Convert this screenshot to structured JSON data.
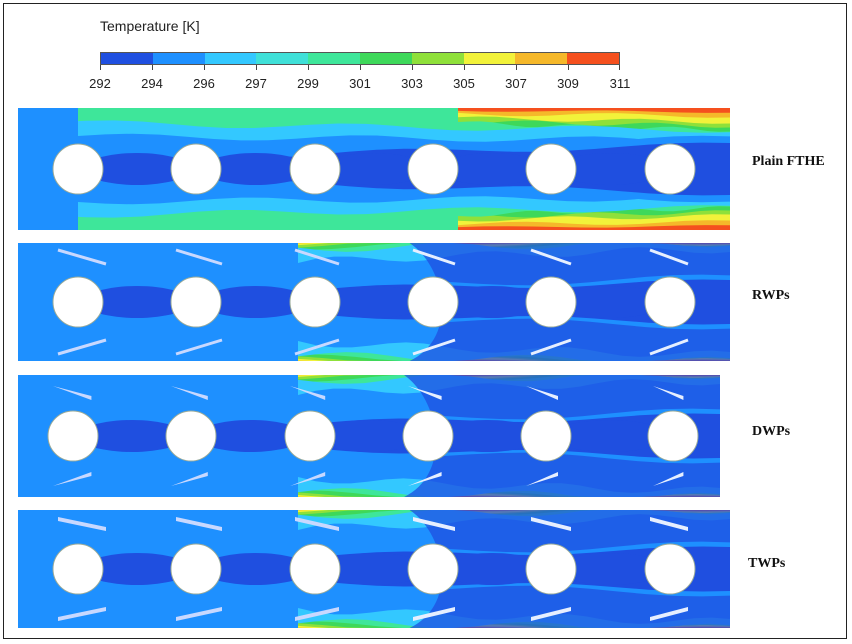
{
  "legend": {
    "title": "Temperature  [K]",
    "ticks": [
      "292",
      "294",
      "296",
      "297",
      "299",
      "301",
      "303",
      "305",
      "307",
      "309",
      "311"
    ],
    "colors": [
      "#1f4fe0",
      "#1e90ff",
      "#33c8ff",
      "#3fe0d8",
      "#3ee69a",
      "#3ed85a",
      "#8fe03a",
      "#f2f23a",
      "#f5b82a",
      "#f5501e"
    ]
  },
  "palette": {
    "hot": "#f5501e",
    "orange": "#f5b82a",
    "yellow": "#f2f23a",
    "lightgreen": "#8fe03a",
    "green": "#3ed85a",
    "aqua": "#3ee69a",
    "cyan": "#33c8ff",
    "skyblue": "#1e90ff",
    "blue": "#1f4fe0",
    "tube": "#ffffff"
  },
  "cases": [
    {
      "label": "Plain FTHE",
      "winglets": "none"
    },
    {
      "label": "RWPs",
      "winglets": "rectangular"
    },
    {
      "label": "DWPs",
      "winglets": "delta"
    },
    {
      "label": "TWPs",
      "winglets": "trapezoidal"
    }
  ]
}
